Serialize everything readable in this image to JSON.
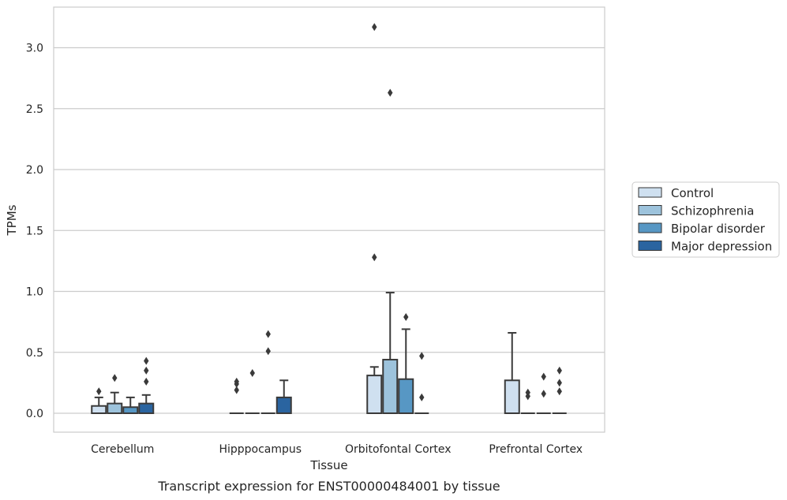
{
  "chart_data": {
    "type": "box",
    "title": "",
    "caption": "Transcript expression for ENST00000484001 by tissue",
    "xlabel": "Tissue",
    "ylabel": "TPMs",
    "ylim": [
      -0.15,
      3.3
    ],
    "yticks": [
      "0.0",
      "0.5",
      "1.0",
      "1.5",
      "2.0",
      "2.5",
      "3.0"
    ],
    "grid": "horizontal",
    "legend_position": "right",
    "categories": [
      "Cerebellum",
      "Hipppocampus",
      "Orbitofontal Cortex",
      "Prefrontal Cortex"
    ],
    "series": [
      {
        "name": "Control",
        "color": "#cfe0f0",
        "boxes": [
          {
            "q1": 0.0,
            "median": 0.0,
            "q3": 0.06,
            "whisker_low": 0.0,
            "whisker_high": 0.13,
            "outliers": [
              0.18
            ]
          },
          {
            "q1": 0.0,
            "median": 0.0,
            "q3": 0.0,
            "whisker_low": 0.0,
            "whisker_high": 0.0,
            "outliers": [
              0.19,
              0.24,
              0.26
            ]
          },
          {
            "q1": 0.0,
            "median": 0.0,
            "q3": 0.31,
            "whisker_low": 0.0,
            "whisker_high": 0.38,
            "outliers": [
              1.28,
              3.17
            ]
          },
          {
            "q1": 0.0,
            "median": 0.0,
            "q3": 0.27,
            "whisker_low": 0.0,
            "whisker_high": 0.66,
            "outliers": []
          }
        ]
      },
      {
        "name": "Schizophrenia",
        "color": "#9dc3dc",
        "boxes": [
          {
            "q1": 0.0,
            "median": 0.0,
            "q3": 0.08,
            "whisker_low": 0.0,
            "whisker_high": 0.17,
            "outliers": [
              0.29
            ]
          },
          {
            "q1": 0.0,
            "median": 0.0,
            "q3": 0.0,
            "whisker_low": 0.0,
            "whisker_high": 0.0,
            "outliers": [
              0.33
            ]
          },
          {
            "q1": 0.0,
            "median": 0.0,
            "q3": 0.44,
            "whisker_low": 0.0,
            "whisker_high": 0.99,
            "outliers": [
              2.63
            ]
          },
          {
            "q1": 0.0,
            "median": 0.0,
            "q3": 0.0,
            "whisker_low": 0.0,
            "whisker_high": 0.0,
            "outliers": [
              0.14,
              0.17
            ]
          }
        ]
      },
      {
        "name": "Bipolar disorder",
        "color": "#5797c4",
        "boxes": [
          {
            "q1": 0.0,
            "median": 0.0,
            "q3": 0.05,
            "whisker_low": 0.0,
            "whisker_high": 0.13,
            "outliers": []
          },
          {
            "q1": 0.0,
            "median": 0.0,
            "q3": 0.0,
            "whisker_low": 0.0,
            "whisker_high": 0.0,
            "outliers": [
              0.51,
              0.65
            ]
          },
          {
            "q1": 0.0,
            "median": 0.0,
            "q3": 0.28,
            "whisker_low": 0.0,
            "whisker_high": 0.69,
            "outliers": [
              0.79
            ]
          },
          {
            "q1": 0.0,
            "median": 0.0,
            "q3": 0.0,
            "whisker_low": 0.0,
            "whisker_high": 0.0,
            "outliers": [
              0.16,
              0.3
            ]
          }
        ]
      },
      {
        "name": "Major depression",
        "color": "#2a64a0",
        "boxes": [
          {
            "q1": 0.0,
            "median": 0.0,
            "q3": 0.08,
            "whisker_low": 0.0,
            "whisker_high": 0.15,
            "outliers": [
              0.26,
              0.35,
              0.43
            ]
          },
          {
            "q1": 0.0,
            "median": 0.0,
            "q3": 0.13,
            "whisker_low": 0.0,
            "whisker_high": 0.27,
            "outliers": []
          },
          {
            "q1": 0.0,
            "median": 0.0,
            "q3": 0.0,
            "whisker_low": 0.0,
            "whisker_high": 0.0,
            "outliers": [
              0.13,
              0.47
            ]
          },
          {
            "q1": 0.0,
            "median": 0.0,
            "q3": 0.0,
            "whisker_low": 0.0,
            "whisker_high": 0.0,
            "outliers": [
              0.18,
              0.25,
              0.35
            ]
          }
        ]
      }
    ]
  }
}
